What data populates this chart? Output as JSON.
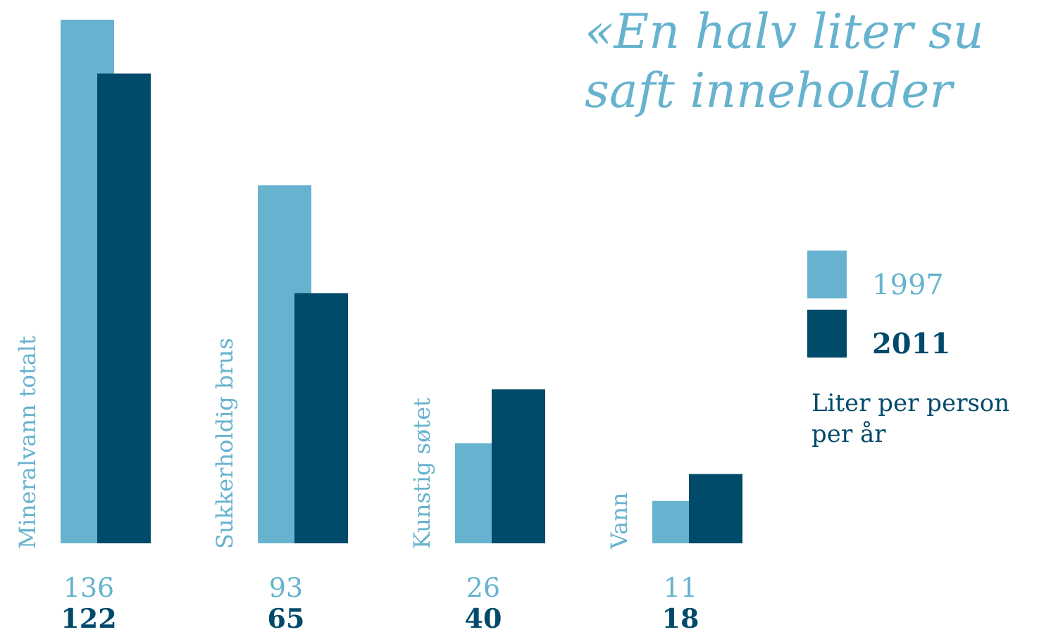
{
  "chart_data": {
    "type": "bar",
    "title": "«En halv liter su\nsaft inneholder",
    "ylabel": "Liter per person per år",
    "categories": [
      "Mineralvann totalt",
      "Sukkerholdig brus",
      "Kunstig søtet",
      "Vann"
    ],
    "series": [
      {
        "name": "1997",
        "color": "#67b3cf",
        "values": [
          136,
          93,
          26,
          11
        ]
      },
      {
        "name": "2011",
        "color": "#004a6a",
        "values": [
          122,
          65,
          40,
          18
        ]
      }
    ],
    "data_labels": true,
    "legend": "right"
  }
}
